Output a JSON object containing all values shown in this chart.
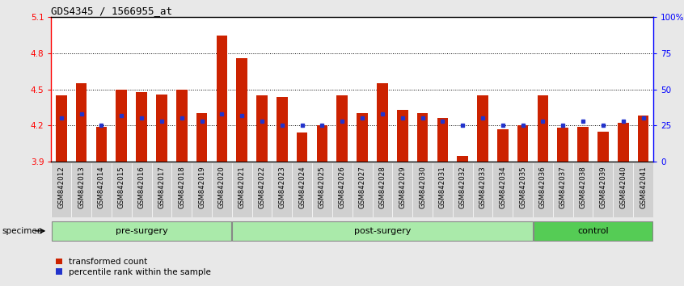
{
  "title": "GDS4345 / 1566955_at",
  "samples": [
    "GSM842012",
    "GSM842013",
    "GSM842014",
    "GSM842015",
    "GSM842016",
    "GSM842017",
    "GSM842018",
    "GSM842019",
    "GSM842020",
    "GSM842021",
    "GSM842022",
    "GSM842023",
    "GSM842024",
    "GSM842025",
    "GSM842026",
    "GSM842027",
    "GSM842028",
    "GSM842029",
    "GSM842030",
    "GSM842031",
    "GSM842032",
    "GSM842033",
    "GSM842034",
    "GSM842035",
    "GSM842036",
    "GSM842037",
    "GSM842038",
    "GSM842039",
    "GSM842040",
    "GSM842041"
  ],
  "red_values": [
    4.45,
    4.55,
    4.19,
    4.5,
    4.48,
    4.46,
    4.5,
    4.3,
    4.95,
    4.76,
    4.45,
    4.44,
    4.14,
    4.2,
    4.45,
    4.3,
    4.55,
    4.33,
    4.3,
    4.26,
    3.95,
    4.45,
    4.17,
    4.2,
    4.45,
    4.18,
    4.19,
    4.15,
    4.22,
    4.28
  ],
  "blue_values": [
    30,
    33,
    25,
    32,
    30,
    28,
    30,
    28,
    33,
    32,
    28,
    25,
    25,
    25,
    28,
    30,
    33,
    30,
    30,
    28,
    25,
    30,
    25,
    25,
    28,
    25,
    28,
    25,
    28,
    30
  ],
  "group_boundaries": [
    0,
    9,
    24,
    30
  ],
  "group_labels": [
    "pre-surgery",
    "post-surgery",
    "control"
  ],
  "group_colors": [
    "#aaeaaa",
    "#aaeaaa",
    "#55cc55"
  ],
  "ylim_left": [
    3.9,
    5.1
  ],
  "yticks_left": [
    3.9,
    4.2,
    4.5,
    4.8,
    5.1
  ],
  "ytick_labels_left": [
    "3.9",
    "4.2",
    "4.5",
    "4.8",
    "5.1"
  ],
  "yticks_right": [
    0,
    25,
    50,
    75,
    100
  ],
  "ytick_labels_right": [
    "0",
    "25",
    "50",
    "75",
    "100%"
  ],
  "dotted_lines": [
    4.2,
    4.5,
    4.8
  ],
  "bar_color": "#cc2200",
  "dot_color": "#2233cc",
  "bar_width": 0.55,
  "legend_red": "transformed count",
  "legend_blue": "percentile rank within the sample",
  "specimen_label": "specimen",
  "bg_color": "#e8e8e8",
  "plot_bg": "#ffffff",
  "xtick_bg": "#d0d0d0"
}
